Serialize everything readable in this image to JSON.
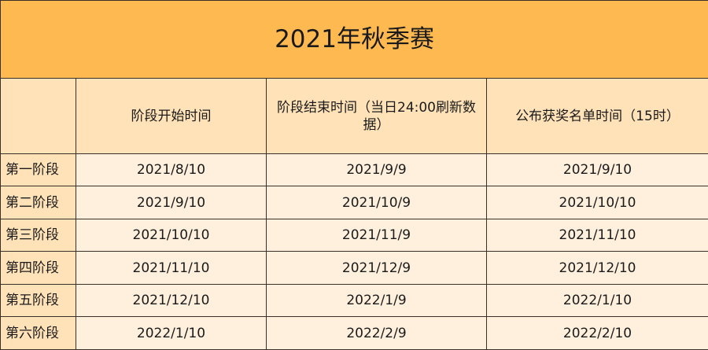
{
  "title": "2021年秋季赛",
  "columns": [
    "",
    "阶段开始时间",
    "阶段结束时间（当日24:00刷新数据）",
    "公布获奖名单时间（15时）"
  ],
  "rows": [
    {
      "stage": "第一阶段",
      "start": "2021/8/10",
      "end": "2021/9/9",
      "announce": "2021/9/10"
    },
    {
      "stage": "第二阶段",
      "start": "2021/9/10",
      "end": "2021/10/9",
      "announce": "2021/10/10"
    },
    {
      "stage": "第三阶段",
      "start": "2021/10/10",
      "end": "2021/11/9",
      "announce": "2021/11/10"
    },
    {
      "stage": "第四阶段",
      "start": "2021/11/10",
      "end": "2021/12/9",
      "announce": "2021/12/10"
    },
    {
      "stage": "第五阶段",
      "start": "2021/12/10",
      "end": "2022/1/9",
      "announce": "2022/1/10"
    },
    {
      "stage": "第六阶段",
      "start": "2022/1/10",
      "end": "2022/2/9",
      "announce": "2022/2/10"
    }
  ],
  "colors": {
    "title_bg": "#FFB951",
    "header_bg": "#FFE2B8",
    "cell_bg": "#FFF0DD",
    "border": "#3a3028"
  }
}
